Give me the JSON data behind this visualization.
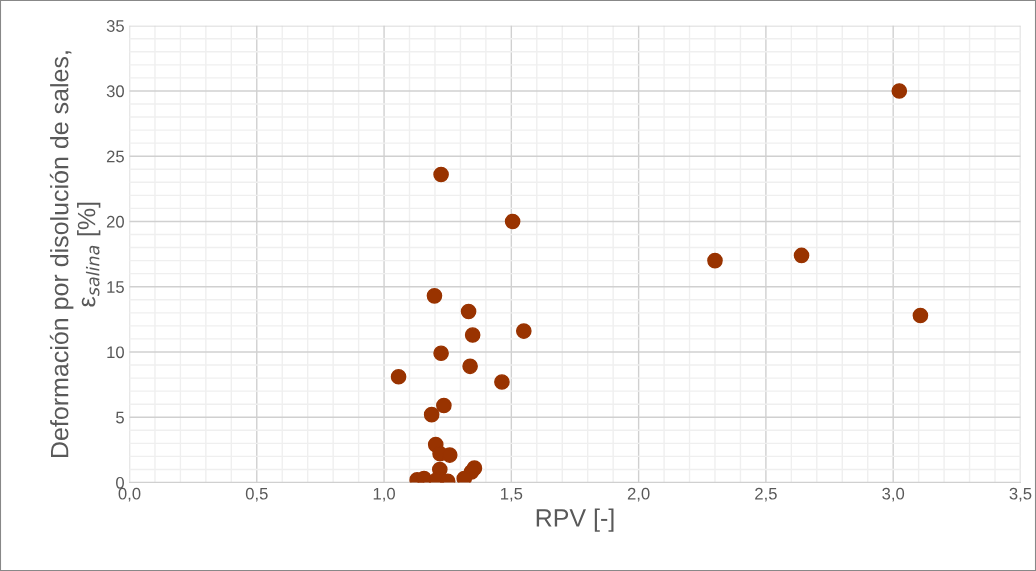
{
  "chart_data": {
    "type": "scatter",
    "xlabel": "RPV [-]",
    "ylabel": "Deformación por disolución de sales,\nε$_{salina}$ [%]",
    "xlim": [
      0,
      3.5
    ],
    "ylim": [
      0,
      35
    ],
    "xticks": [
      {
        "value": 0,
        "label": "0,0"
      },
      {
        "value": 0.5,
        "label": "0,5"
      },
      {
        "value": 1,
        "label": "1,0"
      },
      {
        "value": 1.5,
        "label": "1,5"
      },
      {
        "value": 2,
        "label": "2,0"
      },
      {
        "value": 2.5,
        "label": "2,5"
      },
      {
        "value": 3,
        "label": "3,0"
      },
      {
        "value": 3.5,
        "label": "3,5"
      }
    ],
    "yticks": [
      0,
      5,
      10,
      15,
      20,
      25,
      30,
      35
    ],
    "grid": true,
    "marker": "circle",
    "legend": false,
    "series": [
      {
        "color": "#993300",
        "x": [
          1.224,
          1.505,
          1.198,
          1.332,
          1.348,
          1.549,
          1.224,
          1.338,
          1.057,
          1.463,
          1.235,
          1.187,
          1.203,
          1.22,
          1.258,
          1.219,
          1.355,
          1.343,
          1.315,
          1.13,
          1.157,
          1.207,
          1.25,
          3.024,
          2.3,
          2.64,
          3.107
        ],
        "values": [
          23.6,
          20.0,
          14.3,
          13.1,
          11.3,
          11.6,
          9.9,
          8.9,
          8.1,
          7.7,
          5.9,
          5.2,
          2.9,
          2.2,
          2.1,
          1.0,
          1.1,
          0.8,
          0.3,
          0.2,
          0.3,
          0.2,
          0.1,
          30.0,
          17.0,
          17.4,
          12.8
        ]
      }
    ]
  }
}
